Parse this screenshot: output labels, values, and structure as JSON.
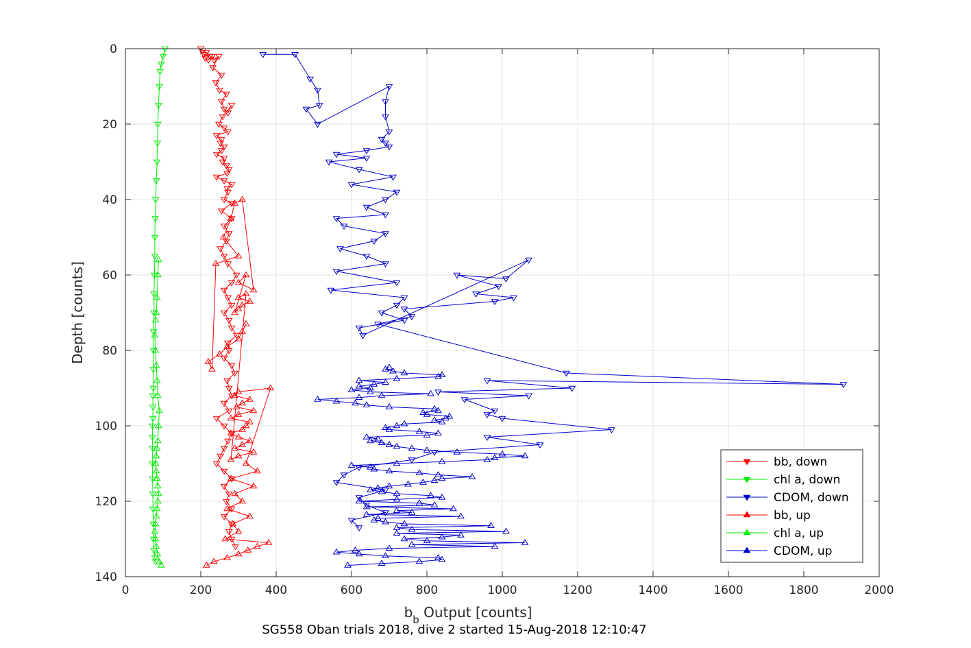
{
  "figure": {
    "caption": "SG558 Oban trials 2018, dive 2 started 15-Aug-2018 12:10:47"
  },
  "chart_data": {
    "type": "line",
    "title": "",
    "xlabel_main": "b",
    "xlabel_sub": "b",
    "xlabel_rest": " Output [counts]",
    "ylabel": "Depth [counts]",
    "xlim": [
      0,
      2000
    ],
    "ylim": [
      0,
      140
    ],
    "y_reversed": true,
    "grid": true,
    "legend_position": "bottom-right",
    "x_ticks": [
      0,
      200,
      400,
      600,
      800,
      1000,
      1200,
      1400,
      1600,
      1800,
      2000
    ],
    "y_ticks": [
      0,
      20,
      40,
      60,
      80,
      100,
      120,
      140
    ],
    "series": [
      {
        "name": "bb, down",
        "color": "#ff0000",
        "marker": "triangle-down",
        "x": [
          200,
          205,
          215,
          225,
          208,
          212,
          220,
          230,
          235,
          248,
          232,
          255,
          240,
          250,
          268,
          255,
          262,
          272,
          282,
          258,
          248,
          262,
          272,
          242,
          255,
          252,
          262,
          255,
          242,
          262,
          258,
          268,
          275,
          270,
          242,
          262,
          282,
          270,
          272,
          262,
          282,
          255,
          282,
          262,
          275,
          268,
          252,
          262,
          272,
          295,
          282,
          262,
          272,
          282,
          262,
          275,
          282,
          295,
          272,
          275,
          262,
          282,
          290,
          270,
          275,
          282,
          262,
          275,
          242,
          262,
          282,
          272,
          262,
          252,
          242,
          262,
          282,
          262,
          275,
          268,
          282,
          262,
          282,
          275,
          282,
          292
        ],
        "y": [
          0,
          0.5,
          1,
          2,
          1.5,
          2.5,
          3,
          2,
          3,
          2,
          5,
          7,
          9,
          11,
          12,
          14,
          16,
          17,
          15,
          18,
          20,
          21,
          22,
          23,
          24,
          25,
          26,
          27,
          28,
          29,
          30,
          31,
          32,
          33,
          34,
          35,
          36,
          37,
          38,
          40,
          41,
          43,
          45,
          47,
          49,
          51,
          53,
          55,
          57,
          60,
          62,
          64,
          66,
          68,
          70,
          72,
          74,
          76,
          78,
          80,
          82,
          84,
          86,
          88,
          90,
          92,
          94,
          96,
          98,
          100,
          102,
          104,
          106,
          108,
          110,
          112,
          114,
          116,
          118,
          120,
          122,
          124,
          126,
          128,
          130,
          132
        ]
      },
      {
        "name": "chl a, down",
        "color": "#00ee00",
        "marker": "triangle-down",
        "x": [
          105,
          100,
          95,
          92,
          90,
          88,
          86,
          85,
          84,
          82,
          80,
          79,
          78,
          78,
          77,
          76,
          76,
          75,
          75,
          74,
          74,
          73,
          73,
          73,
          72,
          72,
          72,
          72,
          72,
          73,
          73,
          74,
          75,
          76,
          78,
          80
        ],
        "y": [
          0,
          2,
          4,
          6,
          10,
          15,
          20,
          25,
          30,
          35,
          40,
          45,
          50,
          55,
          60,
          65,
          70,
          75,
          80,
          85,
          90,
          92,
          95,
          98,
          100,
          103,
          106,
          110,
          114,
          118,
          122,
          126,
          130,
          133,
          135,
          136
        ]
      },
      {
        "name": "CDOM, down",
        "color": "#0000cc",
        "marker": "triangle-down",
        "x": [
          365,
          450,
          490,
          510,
          515,
          480,
          510,
          700,
          690,
          690,
          700,
          680,
          690,
          700,
          640,
          560,
          640,
          540,
          620,
          710,
          600,
          720,
          690,
          640,
          690,
          560,
          580,
          690,
          660,
          570,
          640,
          690,
          560,
          720,
          545,
          740,
          720,
          680,
          740,
          620,
          630,
          1070,
          1010,
          880,
          990,
          930,
          1030,
          980,
          740,
          760,
          670,
          1170,
          1905,
          960,
          1185,
          830,
          1070,
          900,
          980,
          960,
          1000,
          1290,
          960,
          1100,
          820,
          760,
          620,
          580,
          560,
          690,
          620,
          640,
          690,
          600,
          620
        ],
        "y": [
          1.5,
          1.5,
          8,
          11,
          15,
          16,
          20,
          10,
          14,
          18,
          22,
          24,
          25,
          26,
          27,
          28,
          29,
          30,
          32,
          34,
          36,
          38,
          40,
          42,
          44,
          45,
          47,
          49,
          51,
          53,
          55,
          57,
          59,
          62,
          64,
          66,
          68,
          70,
          72,
          74,
          76,
          56,
          61,
          60,
          63,
          65,
          66,
          67,
          69,
          71,
          73,
          86,
          89,
          88,
          90,
          91,
          92,
          93,
          96,
          97,
          98,
          101,
          103,
          105,
          107,
          109,
          111,
          113,
          115,
          117,
          119,
          121,
          123,
          125,
          127
        ]
      },
      {
        "name": "bb, up",
        "color": "#ff0000",
        "marker": "triangle-up",
        "x": [
          215,
          235,
          270,
          300,
          325,
          350,
          380,
          265,
          300,
          285,
          330,
          270,
          310,
          290,
          340,
          280,
          350,
          320,
          385,
          300,
          290,
          330,
          310,
          295,
          340,
          300,
          280,
          330,
          320,
          310,
          280,
          300,
          330,
          310,
          290,
          340,
          300,
          280,
          320,
          300,
          330,
          310,
          300,
          290,
          320,
          300,
          340,
          310,
          290,
          280,
          260,
          300,
          240,
          230,
          220,
          250,
          270,
          300,
          310,
          320
        ],
        "y": [
          137,
          136,
          135,
          134,
          133,
          132,
          131,
          130,
          128,
          126,
          124,
          122,
          120,
          118,
          116,
          114,
          112,
          110,
          90,
          91,
          92,
          93,
          94,
          95,
          96,
          97,
          98,
          99,
          100,
          101,
          102,
          103,
          104,
          105,
          106,
          107,
          108,
          109,
          65,
          66,
          67,
          68,
          69,
          70,
          60,
          62,
          64,
          40,
          41,
          45,
          50,
          55,
          57,
          85,
          83,
          81,
          79,
          77,
          75,
          73
        ]
      },
      {
        "name": "chl a, up",
        "color": "#00ee00",
        "marker": "triangle-up",
        "x": [
          95,
          90,
          85,
          82,
          80,
          78,
          80,
          82,
          84,
          86,
          88,
          86,
          84,
          82,
          80,
          82,
          84,
          86,
          88,
          90,
          86,
          84,
          82,
          80,
          78,
          80,
          82,
          84,
          86,
          88
        ],
        "y": [
          137,
          136,
          134,
          132,
          130,
          128,
          126,
          124,
          122,
          120,
          118,
          116,
          114,
          112,
          110,
          108,
          106,
          104,
          100,
          96,
          92,
          88,
          84,
          80,
          76,
          72,
          70,
          66,
          60,
          56
        ]
      },
      {
        "name": "CDOM, up",
        "color": "#0000cc",
        "marker": "triangle-up",
        "x": [
          590,
          680,
          780,
          840,
          830,
          690,
          620,
          560,
          610,
          700,
          980,
          760,
          1060,
          800,
          740,
          840,
          890,
          720,
          1010,
          760,
          720,
          970,
          740,
          690,
          660,
          670,
          890,
          640,
          760,
          720,
          870,
          640,
          820,
          780,
          620,
          720,
          840,
          810,
          720,
          680,
          650,
          670,
          700,
          750,
          790,
          820,
          840,
          920,
          830,
          780,
          700,
          660,
          650,
          600,
          720,
          840,
          960,
          980,
          1060,
          1000,
          880,
          800,
          760,
          720,
          700,
          680,
          650,
          670,
          640,
          800,
          830,
          780,
          700,
          690,
          720,
          740,
          840,
          820,
          850,
          860,
          800,
          790,
          830,
          820,
          700,
          640,
          610,
          560,
          510,
          620,
          680,
          810,
          650,
          600,
          650,
          620,
          660,
          690,
          620,
          720,
          830,
          840,
          740,
          710,
          690,
          700
        ],
        "y": [
          137,
          136.5,
          136,
          135.5,
          135,
          134.5,
          134,
          133.5,
          133,
          132.5,
          132,
          131.5,
          131,
          130.5,
          130,
          129.5,
          129,
          128.5,
          128,
          127.5,
          127,
          126.5,
          126,
          125.5,
          125,
          124.5,
          124,
          123.5,
          123,
          122.5,
          122,
          121.5,
          121,
          120.5,
          120,
          119.5,
          119,
          118.5,
          118,
          117.5,
          117,
          116.5,
          116,
          115.5,
          115,
          114.5,
          114,
          113.5,
          113,
          112.5,
          112,
          111.5,
          111,
          110.5,
          110,
          109.5,
          109,
          108.5,
          108,
          107.5,
          107,
          106.5,
          106,
          105.5,
          105,
          104.5,
          104,
          103.5,
          103,
          102.5,
          102,
          101.5,
          101,
          100.5,
          100,
          99.5,
          99,
          98.5,
          98,
          97.5,
          97,
          96.5,
          96,
          95.5,
          95,
          94.5,
          94,
          93.5,
          93,
          92.5,
          92,
          91.5,
          91,
          90.5,
          90,
          89.5,
          89,
          88.5,
          88,
          87.5,
          87,
          86.5,
          86,
          85.5,
          85,
          84.5
        ]
      }
    ]
  }
}
